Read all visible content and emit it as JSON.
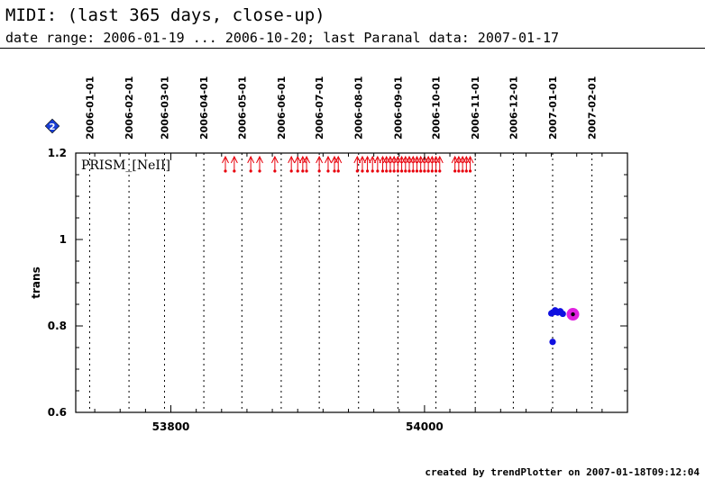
{
  "header": {
    "title": "MIDI: (last 365 days, close-up)",
    "subtitle": "date range: 2006-01-19 ... 2006-10-20; last Paranal data: 2007-01-17"
  },
  "footer": {
    "text": "created by trendPlotter on 2007-01-18T09:12:04"
  },
  "badge": {
    "label": "2",
    "color": "#1a3fd6"
  },
  "chart_data": {
    "type": "scatter",
    "title": "",
    "xlabel": "",
    "ylabel": "trans",
    "panel_label": "PRISM_[NeII]",
    "xlim": [
      53725,
      54160
    ],
    "ylim": [
      0.6,
      1.2
    ],
    "x_ticks": [
      53800,
      54000
    ],
    "y_ticks": [
      0.6,
      0.8,
      1,
      1.2
    ],
    "y_tick_labels": [
      "0.6",
      "0.8",
      "1",
      "1.2"
    ],
    "date_markers": [
      {
        "label": "2006-01-01",
        "mjd": 53736
      },
      {
        "label": "2006-02-01",
        "mjd": 53767
      },
      {
        "label": "2006-03-01",
        "mjd": 53795
      },
      {
        "label": "2006-04-01",
        "mjd": 53826
      },
      {
        "label": "2006-05-01",
        "mjd": 53856
      },
      {
        "label": "2006-06-01",
        "mjd": 53887
      },
      {
        "label": "2006-07-01",
        "mjd": 53917
      },
      {
        "label": "2006-08-01",
        "mjd": 53948
      },
      {
        "label": "2006-09-01",
        "mjd": 53979
      },
      {
        "label": "2006-10-01",
        "mjd": 54009
      },
      {
        "label": "2006-11-01",
        "mjd": 54040
      },
      {
        "label": "2006-12-01",
        "mjd": 54070
      },
      {
        "label": "2007-01-01",
        "mjd": 54101
      },
      {
        "label": "2007-02-01",
        "mjd": 54132
      }
    ],
    "offscale_arrows": {
      "color": "#e8000b",
      "y": 1.2,
      "x": [
        53843,
        53850,
        53863,
        53870,
        53882,
        53895,
        53900,
        53904,
        53907,
        53917,
        53924,
        53929,
        53932,
        53947,
        53951,
        53955,
        53959,
        53963,
        53967,
        53970,
        53973,
        53976,
        53979,
        53982,
        53985,
        53988,
        53991,
        53994,
        53997,
        54000,
        54003,
        54006,
        54009,
        54012,
        54024,
        54027,
        54030,
        54033,
        54036
      ]
    },
    "series": [
      {
        "color": "#1010e0",
        "points": [
          [
            54100,
            0.829
          ],
          [
            54101,
            0.831
          ],
          [
            54102,
            0.832
          ],
          [
            54103,
            0.836
          ],
          [
            54105,
            0.831
          ],
          [
            54107,
            0.834
          ],
          [
            54109,
            0.828
          ],
          [
            54101,
            0.763
          ]
        ]
      },
      {
        "color": "#000000",
        "points": [
          [
            54117,
            0.827
          ]
        ]
      }
    ],
    "highlight_point": {
      "x": 54117,
      "y": 0.827,
      "color": "#e020e0"
    },
    "grid": "vertical dotted at month starts"
  }
}
